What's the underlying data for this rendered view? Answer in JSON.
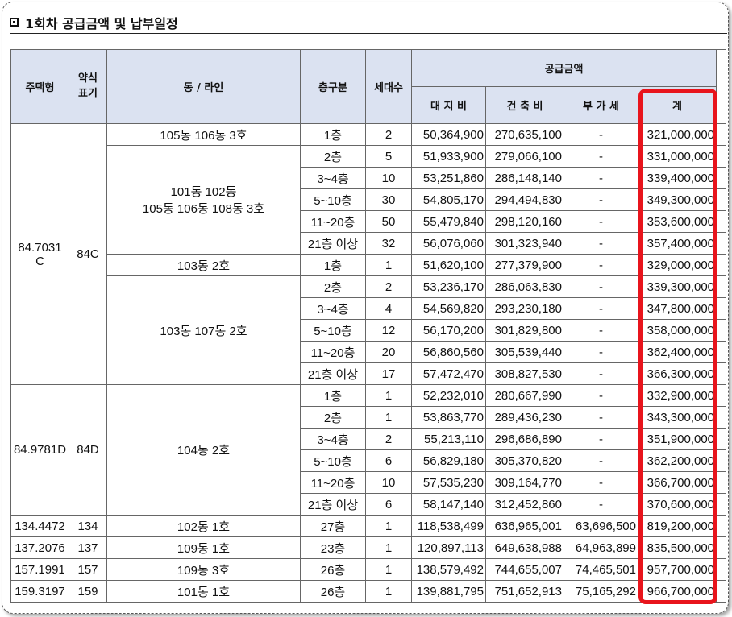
{
  "title": "1회차 공급금액 및 납부일정",
  "headers": {
    "type": "주택형",
    "abbr": "약식\n표기",
    "dong": "동 / 라인",
    "floor": "층구분",
    "units": "세대수",
    "supply": "공급금액",
    "land": "대 지 비",
    "build": "건 축 비",
    "vat": "부 가 세",
    "total": "계"
  },
  "groups": [
    {
      "type": "84.7031\nC",
      "abbr": "84C",
      "blocks": [
        {
          "dong": "105동 106동 3호",
          "rows": [
            {
              "floor": "1층",
              "units": "2",
              "land": "50,364,900",
              "build": "270,635,100",
              "vat": "-",
              "total": "321,000,000"
            }
          ]
        },
        {
          "dong": "101동 102동\n105동 106동 108동 3호",
          "rows": [
            {
              "floor": "2층",
              "units": "5",
              "land": "51,933,900",
              "build": "279,066,100",
              "vat": "-",
              "total": "331,000,000"
            },
            {
              "floor": "3~4층",
              "units": "10",
              "land": "53,251,860",
              "build": "286,148,140",
              "vat": "-",
              "total": "339,400,000"
            },
            {
              "floor": "5~10층",
              "units": "30",
              "land": "54,805,170",
              "build": "294,494,830",
              "vat": "-",
              "total": "349,300,000"
            },
            {
              "floor": "11~20층",
              "units": "50",
              "land": "55,479,840",
              "build": "298,120,160",
              "vat": "-",
              "total": "353,600,000"
            },
            {
              "floor": "21층 이상",
              "units": "32",
              "land": "56,076,060",
              "build": "301,323,940",
              "vat": "-",
              "total": "357,400,000"
            }
          ]
        },
        {
          "dong": "103동 2호",
          "rows": [
            {
              "floor": "1층",
              "units": "1",
              "land": "51,620,100",
              "build": "277,379,900",
              "vat": "-",
              "total": "329,000,000"
            }
          ]
        },
        {
          "dong": "103동 107동 2호",
          "rows": [
            {
              "floor": "2층",
              "units": "2",
              "land": "53,236,170",
              "build": "286,063,830",
              "vat": "-",
              "total": "339,300,000"
            },
            {
              "floor": "3~4층",
              "units": "4",
              "land": "54,569,820",
              "build": "293,230,180",
              "vat": "-",
              "total": "347,800,000"
            },
            {
              "floor": "5~10층",
              "units": "12",
              "land": "56,170,200",
              "build": "301,829,800",
              "vat": "-",
              "total": "358,000,000"
            },
            {
              "floor": "11~20층",
              "units": "20",
              "land": "56,860,560",
              "build": "305,539,440",
              "vat": "-",
              "total": "362,400,000"
            },
            {
              "floor": "21층 이상",
              "units": "17",
              "land": "57,472,470",
              "build": "308,827,530",
              "vat": "-",
              "total": "366,300,000"
            }
          ]
        }
      ]
    },
    {
      "type": "84.9781D",
      "abbr": "84D",
      "blocks": [
        {
          "dong": "104동 2호",
          "rows": [
            {
              "floor": "1층",
              "units": "1",
              "land": "52,232,010",
              "build": "280,667,990",
              "vat": "-",
              "total": "332,900,000"
            },
            {
              "floor": "2층",
              "units": "1",
              "land": "53,863,770",
              "build": "289,436,230",
              "vat": "-",
              "total": "343,300,000"
            },
            {
              "floor": "3~4층",
              "units": "2",
              "land": "55,213,110",
              "build": "296,686,890",
              "vat": "-",
              "total": "351,900,000"
            },
            {
              "floor": "5~10층",
              "units": "6",
              "land": "56,829,180",
              "build": "305,370,820",
              "vat": "-",
              "total": "362,200,000"
            },
            {
              "floor": "11~20층",
              "units": "10",
              "land": "57,535,230",
              "build": "309,164,770",
              "vat": "-",
              "total": "366,700,000"
            },
            {
              "floor": "21층 이상",
              "units": "6",
              "land": "58,147,140",
              "build": "312,452,860",
              "vat": "-",
              "total": "370,600,000"
            }
          ]
        }
      ]
    },
    {
      "type": "134.4472",
      "abbr": "134",
      "blocks": [
        {
          "dong": "102동 1호",
          "rows": [
            {
              "floor": "27층",
              "units": "1",
              "land": "118,538,499",
              "build": "636,965,001",
              "vat": "63,696,500",
              "total": "819,200,000"
            }
          ]
        }
      ]
    },
    {
      "type": "137.2076",
      "abbr": "137",
      "blocks": [
        {
          "dong": "109동 1호",
          "rows": [
            {
              "floor": "23층",
              "units": "1",
              "land": "120,897,113",
              "build": "649,638,988",
              "vat": "64,963,899",
              "total": "835,500,000"
            }
          ]
        }
      ]
    },
    {
      "type": "157.1991",
      "abbr": "157",
      "blocks": [
        {
          "dong": "109동 3호",
          "rows": [
            {
              "floor": "26층",
              "units": "1",
              "land": "138,579,492",
              "build": "744,655,007",
              "vat": "74,465,501",
              "total": "957,700,000"
            }
          ]
        }
      ]
    },
    {
      "type": "159.3197",
      "abbr": "159",
      "blocks": [
        {
          "dong": "101동 1호",
          "rows": [
            {
              "floor": "26층",
              "units": "1",
              "land": "139,881,795",
              "build": "751,652,913",
              "vat": "75,165,292",
              "total": "966,700,000"
            }
          ]
        }
      ]
    }
  ],
  "highlight_color": "#e8141c"
}
